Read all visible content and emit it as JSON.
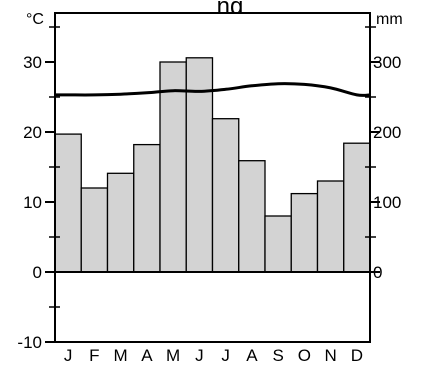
{
  "chart_data": {
    "type": "bar",
    "title": "ng",
    "categories": [
      "J",
      "F",
      "M",
      "A",
      "M",
      "J",
      "J",
      "A",
      "S",
      "O",
      "N",
      "D"
    ],
    "left_axis": {
      "unit": "°C",
      "ylim": [
        -10,
        37
      ],
      "ticks": [
        -10,
        0,
        10,
        20,
        30
      ],
      "minor_ticks": [
        -5,
        5,
        15,
        25,
        35
      ]
    },
    "right_axis": {
      "unit": "mm",
      "ylim": [
        -100,
        370
      ],
      "ticks": [
        0,
        100,
        200,
        300
      ],
      "minor_ticks": [
        50,
        150,
        250,
        350
      ]
    },
    "series": [
      {
        "kind": "bar",
        "axis": "right",
        "color": "#d3d3d3",
        "values": [
          197,
          120,
          141,
          182,
          300,
          306,
          219,
          159,
          80,
          112,
          130,
          184
        ]
      },
      {
        "kind": "line",
        "axis": "left",
        "color": "#000000",
        "values": [
          25.3,
          25.3,
          25.4,
          25.6,
          25.9,
          25.8,
          26.1,
          26.6,
          26.9,
          26.8,
          26.3,
          25.3
        ]
      }
    ],
    "grid": false,
    "legend": "none"
  }
}
